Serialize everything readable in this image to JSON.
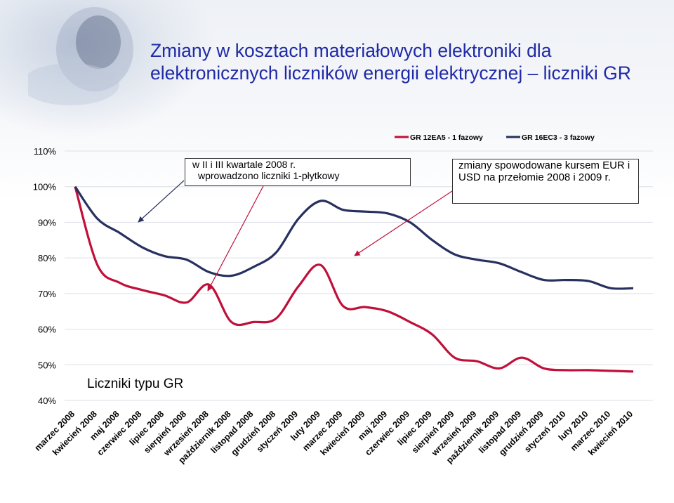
{
  "title": {
    "line1": "Zmiany w kosztach materiałowych elektroniki dla",
    "line2": "elektronicznych liczników energii elektrycznej – liczniki GR"
  },
  "annotations": {
    "left_box_line1": "w II i III kwartale 2008 r.",
    "left_box_line2": "wprowadzono liczniki 1-płytkowy",
    "right_box": "zmiany spowodowane kursem EUR i USD na przełomie 2008 i 2009 r.",
    "bottom_label": "Liczniki typu GR"
  },
  "colors": {
    "series_1": "#c0103a",
    "series_2": "#27305f",
    "title": "#1f2aa6",
    "grid": "#ffffff"
  },
  "chart_data": {
    "type": "line",
    "title": "",
    "xlabel": "",
    "ylabel": "",
    "ylim": [
      40,
      110
    ],
    "ytick_labels": [
      "40%",
      "50%",
      "60%",
      "70%",
      "80%",
      "90%",
      "100%",
      "110%"
    ],
    "yticks": [
      40,
      50,
      60,
      70,
      80,
      90,
      100,
      110
    ],
    "legend_position": "top-right",
    "categories": [
      "marzec 2008",
      "kwiecień 2008",
      "maj 2008",
      "czerwiec 2008",
      "lipiec 2008",
      "sierpień 2008",
      "wrzesień 2008",
      "październik 2008",
      "listopad 2008",
      "grudzień 2008",
      "styczeń 2009",
      "luty 2009",
      "marzec 2009",
      "kwiecień 2009",
      "maj 2009",
      "czerwiec 2009",
      "lipiec 2009",
      "sierpień 2009",
      "wrzesień 2009",
      "październik 2009",
      "listopad 2009",
      "grudzień 2009",
      "styczeń 2010",
      "luty 2010",
      "marzec 2010",
      "kwiecień 2010"
    ],
    "series": [
      {
        "name": "GR 12EA5 - 1 fazowy",
        "values": [
          100,
          78,
          73,
          71,
          69.5,
          67.5,
          72.5,
          62,
          62,
          63,
          72,
          78,
          66.5,
          66.2,
          65,
          62,
          58.5,
          52,
          51,
          49,
          52,
          49,
          48.5,
          48.5,
          48.3,
          48.1
        ]
      },
      {
        "name": "GR 16EC3 - 3 fazowy",
        "values": [
          100,
          91,
          87,
          83,
          80.5,
          79.5,
          76,
          75,
          77.5,
          81.5,
          91,
          96,
          93.5,
          93,
          92.5,
          90,
          85,
          81,
          79.5,
          78.5,
          76,
          73.8,
          73.8,
          73.5,
          71.5,
          71.5
        ]
      }
    ]
  }
}
